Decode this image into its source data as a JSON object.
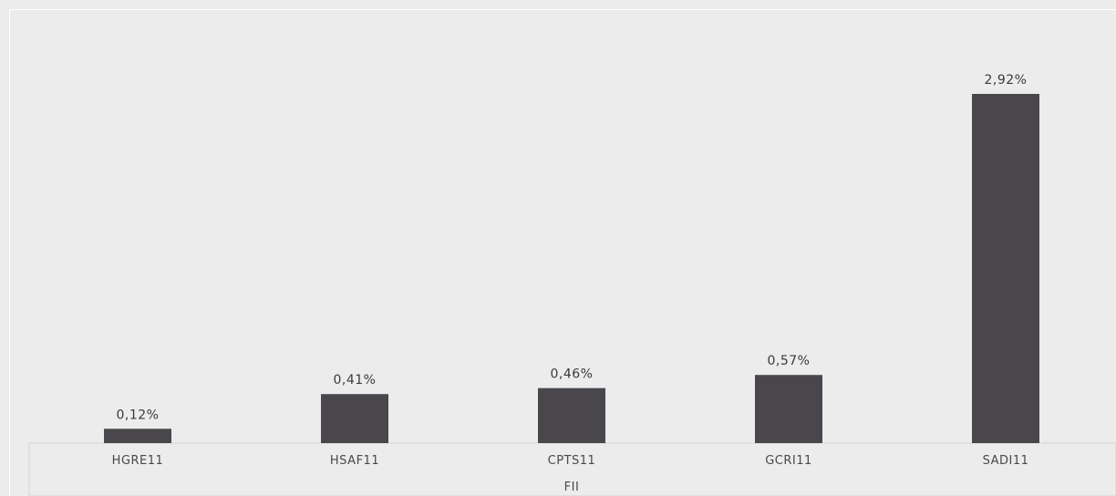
{
  "chart_data": {
    "type": "bar",
    "categories": [
      "HGRE11",
      "HSAF11",
      "CPTS11",
      "GCRI11",
      "SADI11"
    ],
    "values": [
      0.12,
      0.41,
      0.46,
      0.57,
      2.92
    ],
    "data_labels": [
      "0,12%",
      "0,41%",
      "0,46%",
      "0,57%",
      "2,92%"
    ],
    "title": "",
    "xlabel": "FII",
    "ylabel": "",
    "ylim": [
      0,
      3.0
    ],
    "grid": false,
    "legend": "none",
    "bar_color": "#4a474c",
    "background_color": "#ececec",
    "axis_band_color": "#ececec",
    "axis_band_border_color": "#d4d4d4"
  }
}
